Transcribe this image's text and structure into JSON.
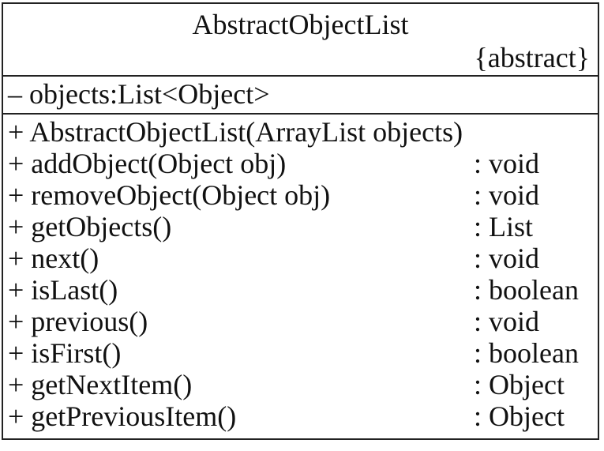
{
  "uml_class": {
    "name": "AbstractObjectList",
    "stereotype": "{abstract}",
    "attributes": [
      {
        "text": "– objects:List<Object>"
      }
    ],
    "operations": [
      {
        "signature": "+ AbstractObjectList(ArrayList objects)",
        "return_type": ""
      },
      {
        "signature": "+ addObject(Object obj)",
        "return_type": ": void"
      },
      {
        "signature": "+ removeObject(Object obj)",
        "return_type": ": void"
      },
      {
        "signature": "+ getObjects()",
        "return_type": ": List"
      },
      {
        "signature": "+ next()",
        "return_type": ": void"
      },
      {
        "signature": "+ isLast()",
        "return_type": ": boolean"
      },
      {
        "signature": "+ previous()",
        "return_type": ": void"
      },
      {
        "signature": "+ isFirst()",
        "return_type": ": boolean"
      },
      {
        "signature": "+ getNextItem()",
        "return_type": ": Object"
      },
      {
        "signature": "+ getPreviousItem()",
        "return_type": ": Object"
      }
    ]
  }
}
